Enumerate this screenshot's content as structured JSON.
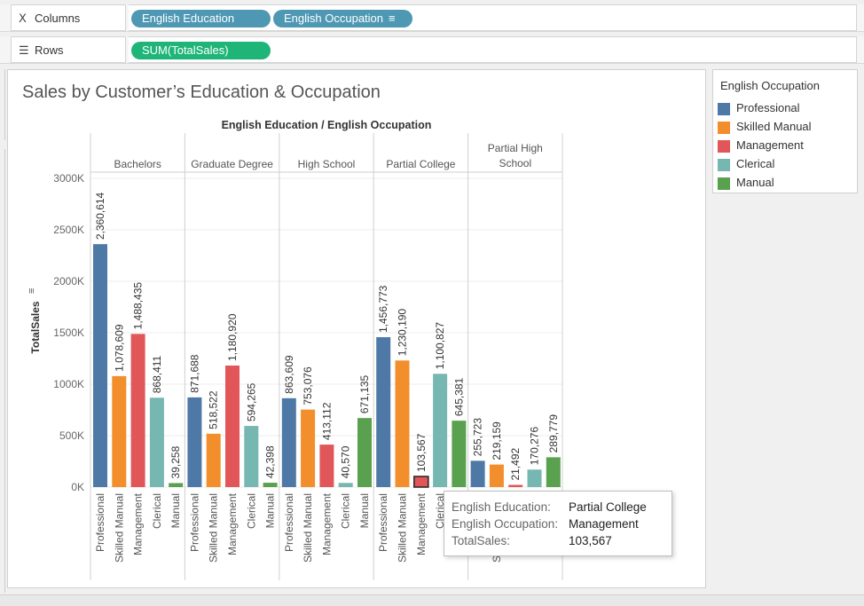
{
  "shelves": {
    "columns": {
      "label": "Columns",
      "icon": "columns-icon",
      "pills": [
        "English Education",
        "English Occupation"
      ]
    },
    "rows": {
      "label": "Rows",
      "icon": "rows-icon",
      "pills": [
        "SUM(TotalSales)"
      ]
    }
  },
  "sheet": {
    "title": "Sales by Customer’s Education & Occupation"
  },
  "legend": {
    "title": "English Occupation",
    "items": [
      {
        "label": "Professional",
        "color": "#4e79a7"
      },
      {
        "label": "Skilled Manual",
        "color": "#f28e2b"
      },
      {
        "label": "Management",
        "color": "#e15759"
      },
      {
        "label": "Clerical",
        "color": "#76b7b2"
      },
      {
        "label": "Manual",
        "color": "#59a14f"
      }
    ]
  },
  "tooltip": {
    "rows": [
      {
        "key": "English Education:",
        "value": "Partial College"
      },
      {
        "key": "English Occupation:",
        "value": "Management"
      },
      {
        "key": "TotalSales:",
        "value": "103,567"
      }
    ]
  },
  "chart_data": {
    "type": "bar",
    "title": "Sales by Customer’s Education & Occupation",
    "column_header": "English Education / English Occupation",
    "ylabel": "TotalSales",
    "ylim": [
      0,
      3000000
    ],
    "yticks": [
      "0K",
      "500K",
      "1000K",
      "1500K",
      "2000K",
      "2500K",
      "3000K"
    ],
    "occupations": [
      "Professional",
      "Skilled Manual",
      "Management",
      "Clerical",
      "Manual"
    ],
    "groups": [
      {
        "name": "Bachelors",
        "values": [
          2360614,
          1078609,
          1488435,
          868411,
          39258
        ],
        "labels": [
          "2,360,614",
          "1,078,609",
          "1,488,435",
          "868,411",
          "39,258"
        ]
      },
      {
        "name": "Graduate Degree",
        "values": [
          871688,
          518522,
          1180920,
          594265,
          42398
        ],
        "labels": [
          "871,688",
          "518,522",
          "1,180,920",
          "594,265",
          "42,398"
        ]
      },
      {
        "name": "High School",
        "values": [
          863609,
          753076,
          413112,
          40570,
          671135
        ],
        "labels": [
          "863,609",
          "753,076",
          "413,112",
          "40,570",
          "671,135"
        ]
      },
      {
        "name": "Partial College",
        "values": [
          1456773,
          1230190,
          103567,
          1100827,
          645381
        ],
        "labels": [
          "1,456,773",
          "1,230,190",
          "103,567",
          "1,100,827",
          "645,381"
        ]
      },
      {
        "name": "Partial High School",
        "values": [
          255723,
          219159,
          21492,
          170276,
          289779
        ],
        "labels": [
          "255,723",
          "219,159",
          "21,492",
          "170,276",
          "289,779"
        ]
      }
    ],
    "highlighted": {
      "group": "Partial College",
      "occupation": "Management"
    },
    "legend_position": "right"
  }
}
